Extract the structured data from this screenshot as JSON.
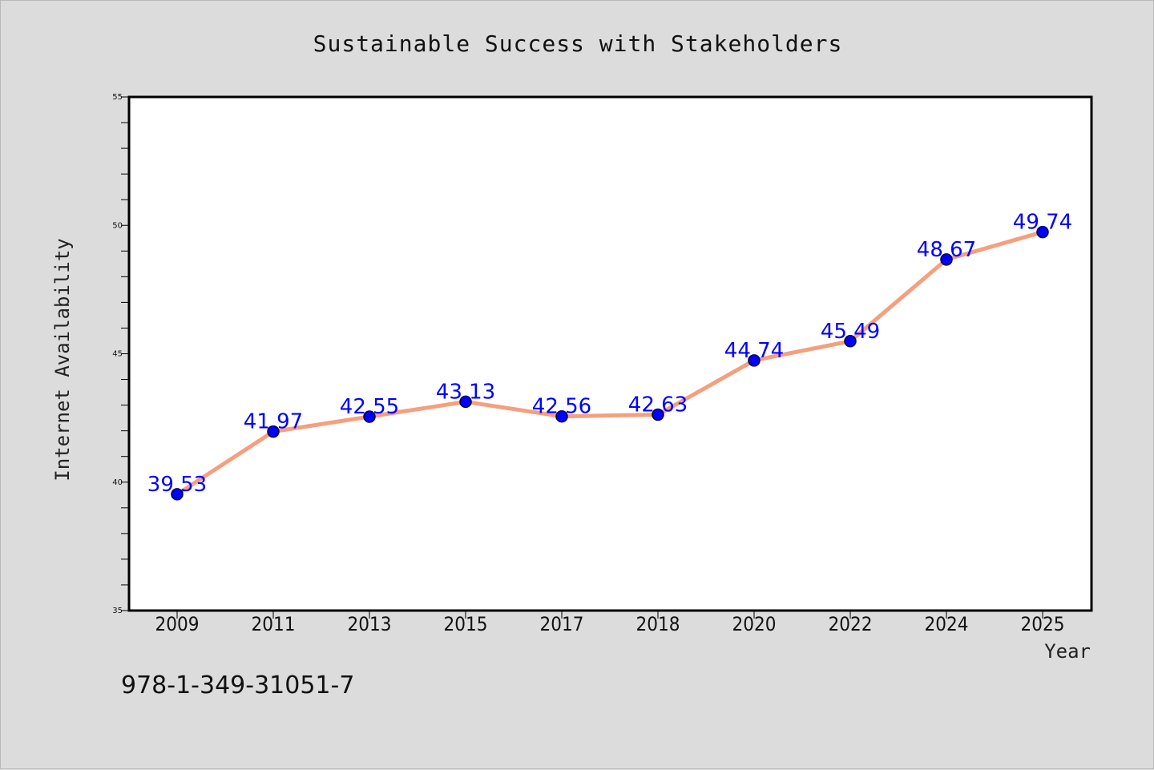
{
  "chart_data": {
    "type": "line",
    "title": "Sustainable Success with Stakeholders",
    "xlabel": "Year",
    "ylabel": "Internet Availability",
    "categories": [
      "2009",
      "2011",
      "2013",
      "2015",
      "2017",
      "2018",
      "2020",
      "2022",
      "2024",
      "2025"
    ],
    "values": [
      39.53,
      41.97,
      42.55,
      43.13,
      42.56,
      42.63,
      44.74,
      45.49,
      48.67,
      49.74
    ],
    "data_labels": [
      "39.53",
      "41.97",
      "42.55",
      "43.13",
      "42.56",
      "42.63",
      "44.74",
      "45.49",
      "48.67",
      "49.74"
    ],
    "ylim": [
      35,
      55
    ],
    "yticks": [
      35,
      40,
      45,
      50,
      55
    ],
    "grid": false,
    "legend": "none",
    "line_color": "#f4a07f",
    "marker_color": "#0000ff",
    "label_color": "#0000ff"
  },
  "footer": {
    "isbn": "978-1-349-31051-7"
  }
}
